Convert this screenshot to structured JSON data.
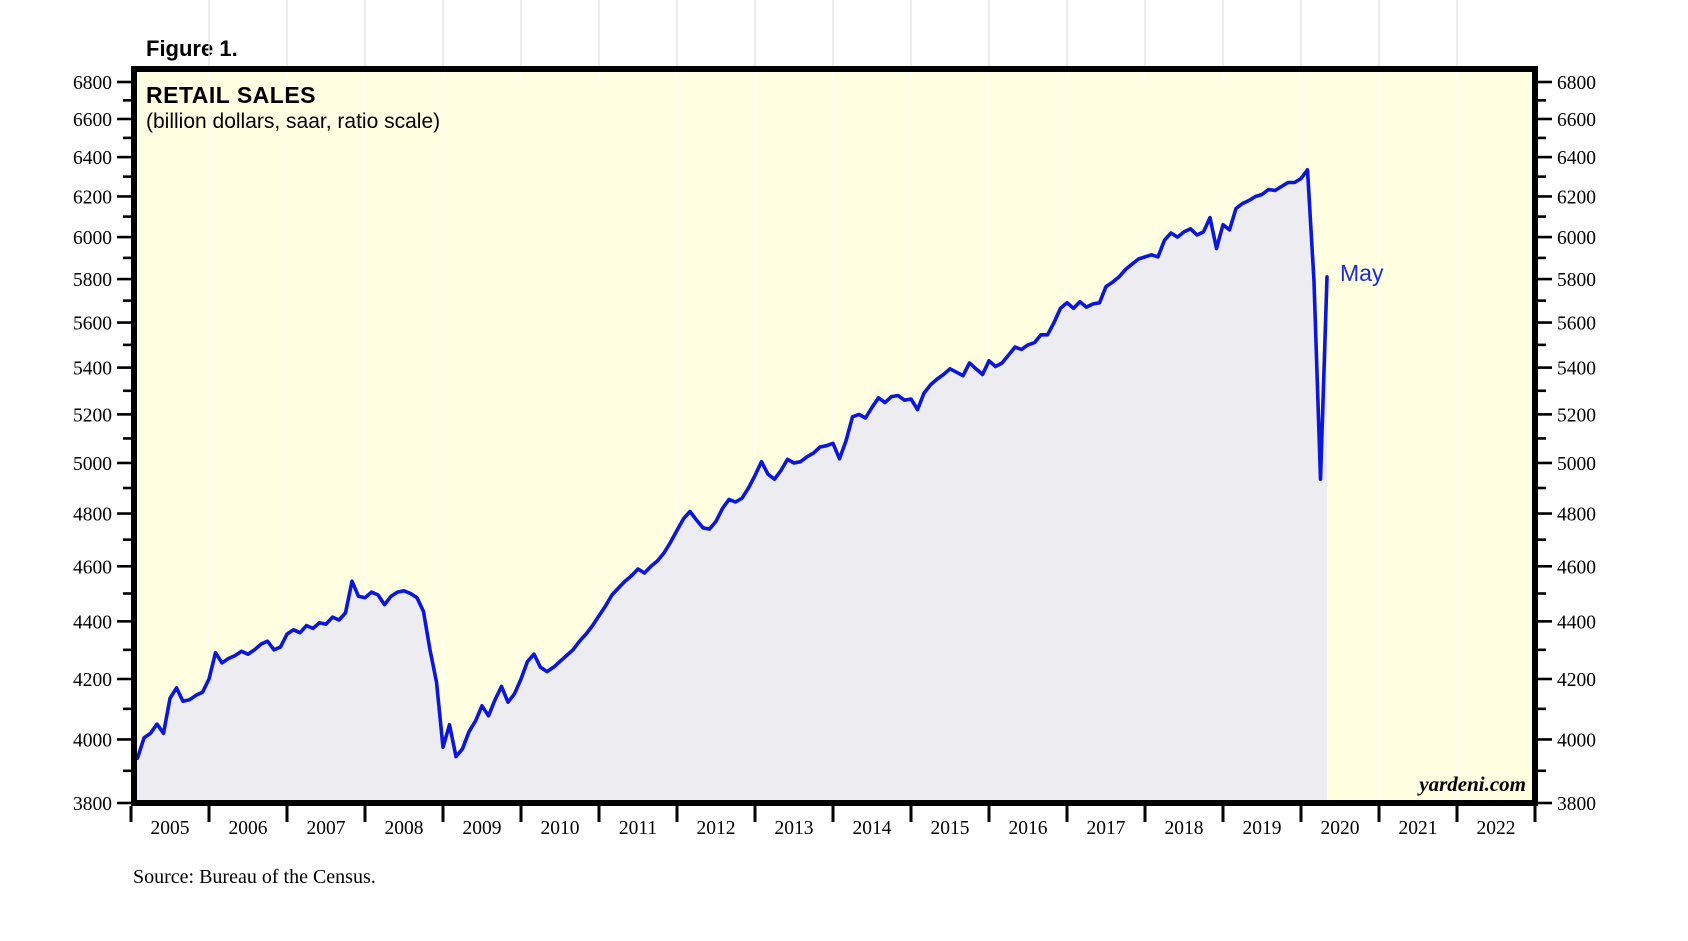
{
  "figure_label": "Figure 1.",
  "source_note": "Source: Bureau of the Census.",
  "chart_data": {
    "type": "area",
    "title": "RETAIL SALES",
    "subtitle": "(billion dollars, saar, ratio scale)",
    "watermark": "yardeni.com",
    "last_point_label": "May",
    "y_scale": "log",
    "ylim": [
      3800,
      6800
    ],
    "y_major_tick_step": 200,
    "y_minor_tick_step": 100,
    "y_tick_labels": [
      "6800",
      "6600",
      "6400",
      "6200",
      "6000",
      "5800",
      "5600",
      "5400",
      "5200",
      "5000",
      "4800",
      "4600",
      "4400",
      "4200",
      "4000",
      "3800"
    ],
    "x_range_years": [
      2005,
      2023
    ],
    "x_tick_labels": [
      "2005",
      "2006",
      "2007",
      "2008",
      "2009",
      "2010",
      "2011",
      "2012",
      "2013",
      "2014",
      "2015",
      "2016",
      "2017",
      "2018",
      "2019",
      "2020",
      "2021",
      "2022"
    ],
    "axis_labels_both_sides": true,
    "grid": "faint vertical lines at year boundaries",
    "legend_position": "none",
    "series": [
      {
        "name": "Retail Sales",
        "frequency": "monthly",
        "start": "2005-01",
        "end": "2020-05",
        "values": [
          3970,
          3940,
          4005,
          4020,
          4050,
          4020,
          4135,
          4170,
          4125,
          4130,
          4145,
          4155,
          4200,
          4290,
          4255,
          4270,
          4280,
          4295,
          4285,
          4300,
          4320,
          4330,
          4300,
          4310,
          4355,
          4370,
          4360,
          4385,
          4375,
          4395,
          4390,
          4415,
          4405,
          4430,
          4545,
          4490,
          4485,
          4505,
          4495,
          4460,
          4490,
          4505,
          4510,
          4500,
          4485,
          4435,
          4300,
          4190,
          3975,
          4048,
          3945,
          3970,
          4025,
          4060,
          4110,
          4077,
          4130,
          4175,
          4122,
          4150,
          4200,
          4260,
          4285,
          4240,
          4225,
          4240,
          4260,
          4280,
          4300,
          4330,
          4355,
          4385,
          4420,
          4455,
          4495,
          4520,
          4545,
          4565,
          4590,
          4575,
          4600,
          4620,
          4650,
          4690,
          4735,
          4780,
          4808,
          4775,
          4745,
          4740,
          4770,
          4820,
          4855,
          4845,
          4860,
          4900,
          4950,
          5005,
          4955,
          4935,
          4970,
          5015,
          5000,
          5005,
          5025,
          5040,
          5065,
          5070,
          5080,
          5017,
          5090,
          5190,
          5200,
          5185,
          5230,
          5270,
          5250,
          5275,
          5280,
          5260,
          5265,
          5220,
          5290,
          5325,
          5350,
          5370,
          5395,
          5380,
          5365,
          5420,
          5395,
          5370,
          5430,
          5405,
          5420,
          5455,
          5490,
          5480,
          5500,
          5510,
          5545,
          5545,
          5600,
          5665,
          5690,
          5665,
          5695,
          5670,
          5685,
          5690,
          5765,
          5785,
          5810,
          5845,
          5870,
          5895,
          5905,
          5915,
          5905,
          5985,
          6020,
          6000,
          6025,
          6040,
          6010,
          6025,
          6095,
          5945,
          6060,
          6035,
          6140,
          6165,
          6180,
          6200,
          6210,
          6235,
          6230,
          6250,
          6270,
          6270,
          6290,
          6335,
          5790,
          4935,
          5810
        ]
      }
    ],
    "annotations": [
      {
        "text": "May",
        "attached_to": "2020-05",
        "value": 5810,
        "color": "#1b2be0"
      }
    ],
    "colors": {
      "plot_background": "#fffee1",
      "area_fill": "#ececf1",
      "line": "#0a16e0",
      "label_blue": "#1b2be0",
      "border": "#000000",
      "page_background": "#ffffff",
      "year_gridline": "#e3e3e3"
    }
  }
}
